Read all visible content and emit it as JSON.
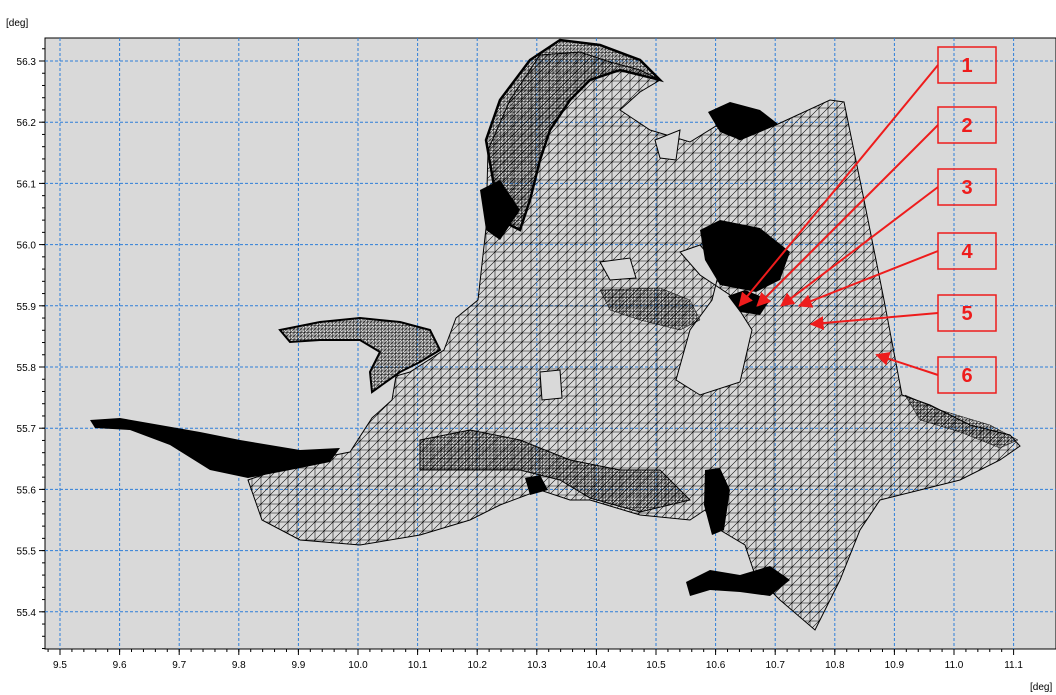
{
  "map": {
    "y_unit": "[deg]",
    "x_unit": "[deg]",
    "x_ticks": [
      "9.5",
      "9.6",
      "9.7",
      "9.8",
      "9.9",
      "10.0",
      "10.1",
      "10.2",
      "10.3",
      "10.4",
      "10.5",
      "10.6",
      "10.7",
      "10.8",
      "10.9",
      "11.0",
      "11.1"
    ],
    "y_ticks": [
      "56.3",
      "56.2",
      "56.1",
      "56.0",
      "55.9",
      "55.8",
      "55.7",
      "55.6",
      "55.5",
      "55.4"
    ],
    "plot_background": "#d9d9d9",
    "grid_color": "#2f7fd9",
    "mesh_color": "#000000",
    "annotation_color": "#ee1c1c",
    "callouts": [
      {
        "label": "1",
        "target": [
          10.64,
          55.9
        ]
      },
      {
        "label": "2",
        "target": [
          10.67,
          55.9
        ]
      },
      {
        "label": "3",
        "target": [
          10.71,
          55.9
        ]
      },
      {
        "label": "4",
        "target": [
          10.74,
          55.9
        ]
      },
      {
        "label": "5",
        "target": [
          10.76,
          55.87
        ]
      },
      {
        "label": "6",
        "target": [
          10.87,
          55.82
        ]
      }
    ]
  }
}
